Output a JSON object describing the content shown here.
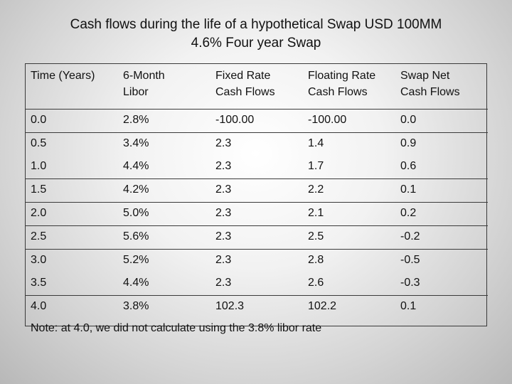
{
  "title_line1": "Cash flows during the life of a hypothetical Swap USD 100MM",
  "title_line2": "4.6% Four year Swap",
  "headers": [
    [
      "Time (Years)",
      ""
    ],
    [
      "6-Month",
      "Libor"
    ],
    [
      "Fixed Rate",
      "Cash Flows"
    ],
    [
      "Floating Rate",
      "Cash Flows"
    ],
    [
      "Swap Net",
      "Cash Flows"
    ]
  ],
  "rows": [
    [
      "0.0",
      "2.8%",
      "-100.00",
      "-100.00",
      "0.0"
    ],
    [
      "0.5",
      "3.4%",
      "2.3",
      "1.4",
      "0.9"
    ],
    [
      "1.0",
      "4.4%",
      "2.3",
      "1.7",
      "0.6"
    ],
    [
      "1.5",
      "4.2%",
      "2.3",
      "2.2",
      "0.1"
    ],
    [
      "2.0",
      "5.0%",
      "2.3",
      "2.1",
      "0.2"
    ],
    [
      "2.5",
      "5.6%",
      "2.3",
      "2.5",
      "-0.2"
    ],
    [
      "3.0",
      "5.2%",
      "2.3",
      "2.8",
      "-0.5"
    ],
    [
      "3.5",
      "4.4%",
      "2.3",
      "2.6",
      "-0.3"
    ],
    [
      "4.0",
      "3.8%",
      "102.3",
      "102.2",
      "0.1"
    ]
  ],
  "note": "Note: at 4.0, we did not calculate using the 3.8% libor rate"
}
